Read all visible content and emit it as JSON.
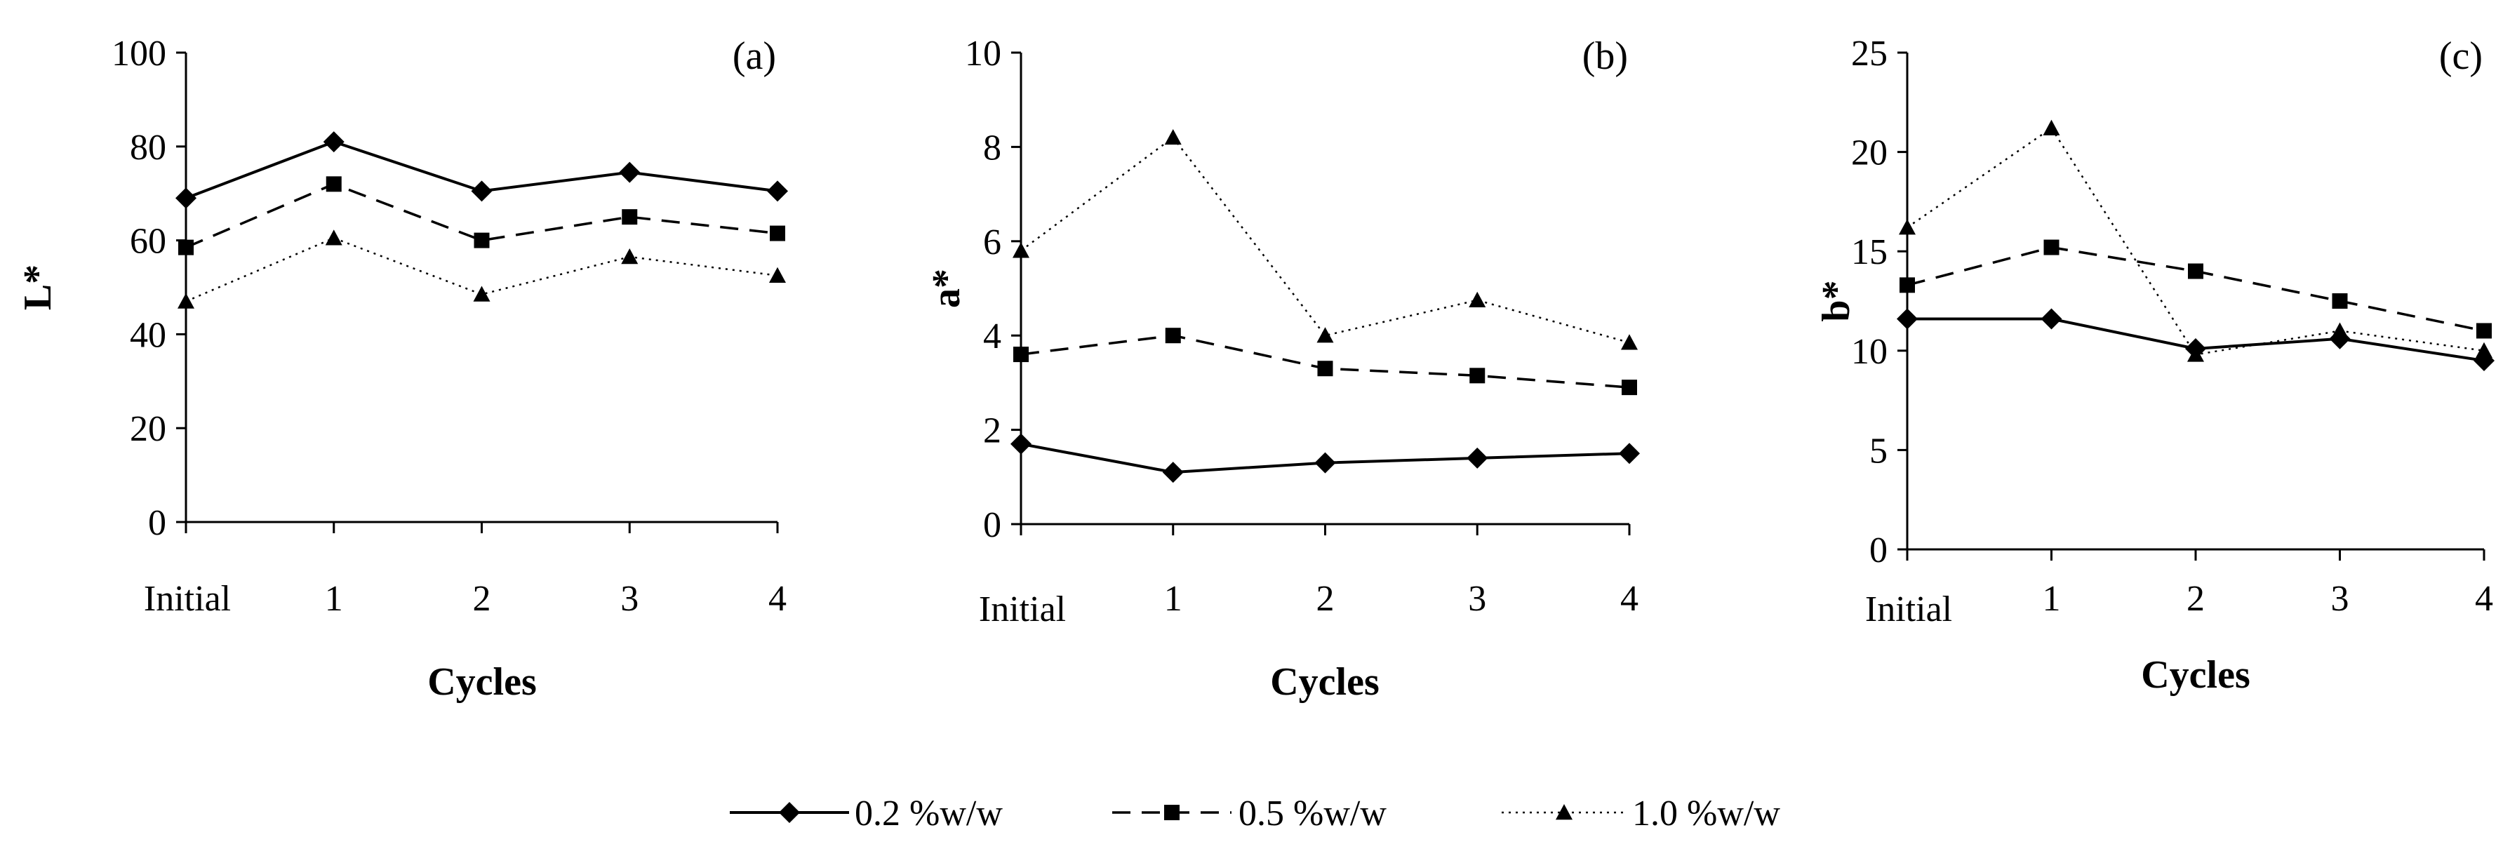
{
  "figure": {
    "legend": {
      "entries": [
        "0.2 %w/w",
        "0.5 %w/w",
        "1.0 %w/w"
      ]
    }
  },
  "chart_data": [
    {
      "type": "line",
      "panel": "(a)",
      "title": "",
      "xlabel": "Cycles",
      "ylabel": "L*",
      "categories": [
        "Initial",
        "1",
        "2",
        "3",
        "4"
      ],
      "ylim": [
        0,
        100
      ],
      "yticks": [
        "0",
        "20",
        "40",
        "60",
        "80",
        "100"
      ],
      "grid": false,
      "series": [
        {
          "name": "0.2 %w/w",
          "marker": "diamond",
          "line": "solid",
          "values": [
            69,
            81,
            70.5,
            74.5,
            70.5
          ]
        },
        {
          "name": "0.5 %w/w",
          "marker": "square",
          "line": "dashed",
          "values": [
            58.5,
            72,
            60,
            65,
            61.5
          ]
        },
        {
          "name": "1.0 %w/w",
          "marker": "triangle",
          "line": "dotted",
          "values": [
            47,
            60.5,
            48.5,
            56.5,
            52.5
          ]
        }
      ]
    },
    {
      "type": "line",
      "panel": "(b)",
      "title": "",
      "xlabel": "Cycles",
      "ylabel": "a*",
      "categories": [
        "Initial",
        "1",
        "2",
        "3",
        "4"
      ],
      "ylim": [
        0,
        10
      ],
      "yticks": [
        "0",
        "2",
        "4",
        "6",
        "8",
        "10"
      ],
      "grid": false,
      "series": [
        {
          "name": "0.2 %w/w",
          "marker": "diamond",
          "line": "solid",
          "values": [
            1.7,
            1.1,
            1.3,
            1.4,
            1.5
          ]
        },
        {
          "name": "0.5 %w/w",
          "marker": "square",
          "line": "dashed",
          "values": [
            3.6,
            4.0,
            3.3,
            3.15,
            2.9
          ]
        },
        {
          "name": "1.0 %w/w",
          "marker": "triangle",
          "line": "dotted",
          "values": [
            5.8,
            8.2,
            4.0,
            4.75,
            3.85
          ]
        }
      ]
    },
    {
      "type": "line",
      "panel": "(c)",
      "title": "",
      "xlabel": "Cycles",
      "ylabel": "b*",
      "categories": [
        "Initial",
        "1",
        "2",
        "3",
        "4"
      ],
      "ylim": [
        0,
        25
      ],
      "yticks": [
        "0",
        "5",
        "10",
        "15",
        "20",
        "25"
      ],
      "grid": false,
      "series": [
        {
          "name": "0.2 %w/w",
          "marker": "diamond",
          "line": "solid",
          "values": [
            11.6,
            11.6,
            10.1,
            10.6,
            9.5
          ]
        },
        {
          "name": "0.5 %w/w",
          "marker": "square",
          "line": "dashed",
          "values": [
            13.3,
            15.2,
            14.0,
            12.5,
            11.0
          ]
        },
        {
          "name": "1.0 %w/w",
          "marker": "triangle",
          "line": "dotted",
          "values": [
            16.2,
            21.2,
            9.8,
            11.0,
            10.0
          ]
        }
      ]
    }
  ]
}
